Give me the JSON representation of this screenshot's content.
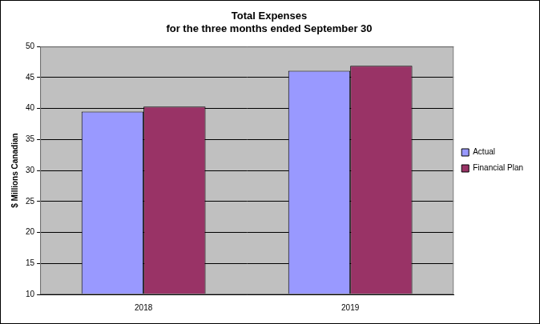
{
  "chart_data": {
    "type": "bar",
    "title": [
      "Total Expenses",
      "for the three months ended September 30"
    ],
    "y_label": "$ Millions Canadian",
    "categories": [
      "2018",
      "2019"
    ],
    "series": [
      {
        "name": "Actual",
        "color": "#9999ff",
        "values": [
          39.5,
          46.1
        ]
      },
      {
        "name": "Financial Plan",
        "color": "#993366",
        "values": [
          40.3,
          46.9
        ]
      }
    ],
    "ylim": [
      10,
      50
    ],
    "yticks": [
      10,
      15,
      20,
      25,
      30,
      35,
      40,
      45,
      50
    ],
    "grid": true,
    "legend": "right"
  }
}
